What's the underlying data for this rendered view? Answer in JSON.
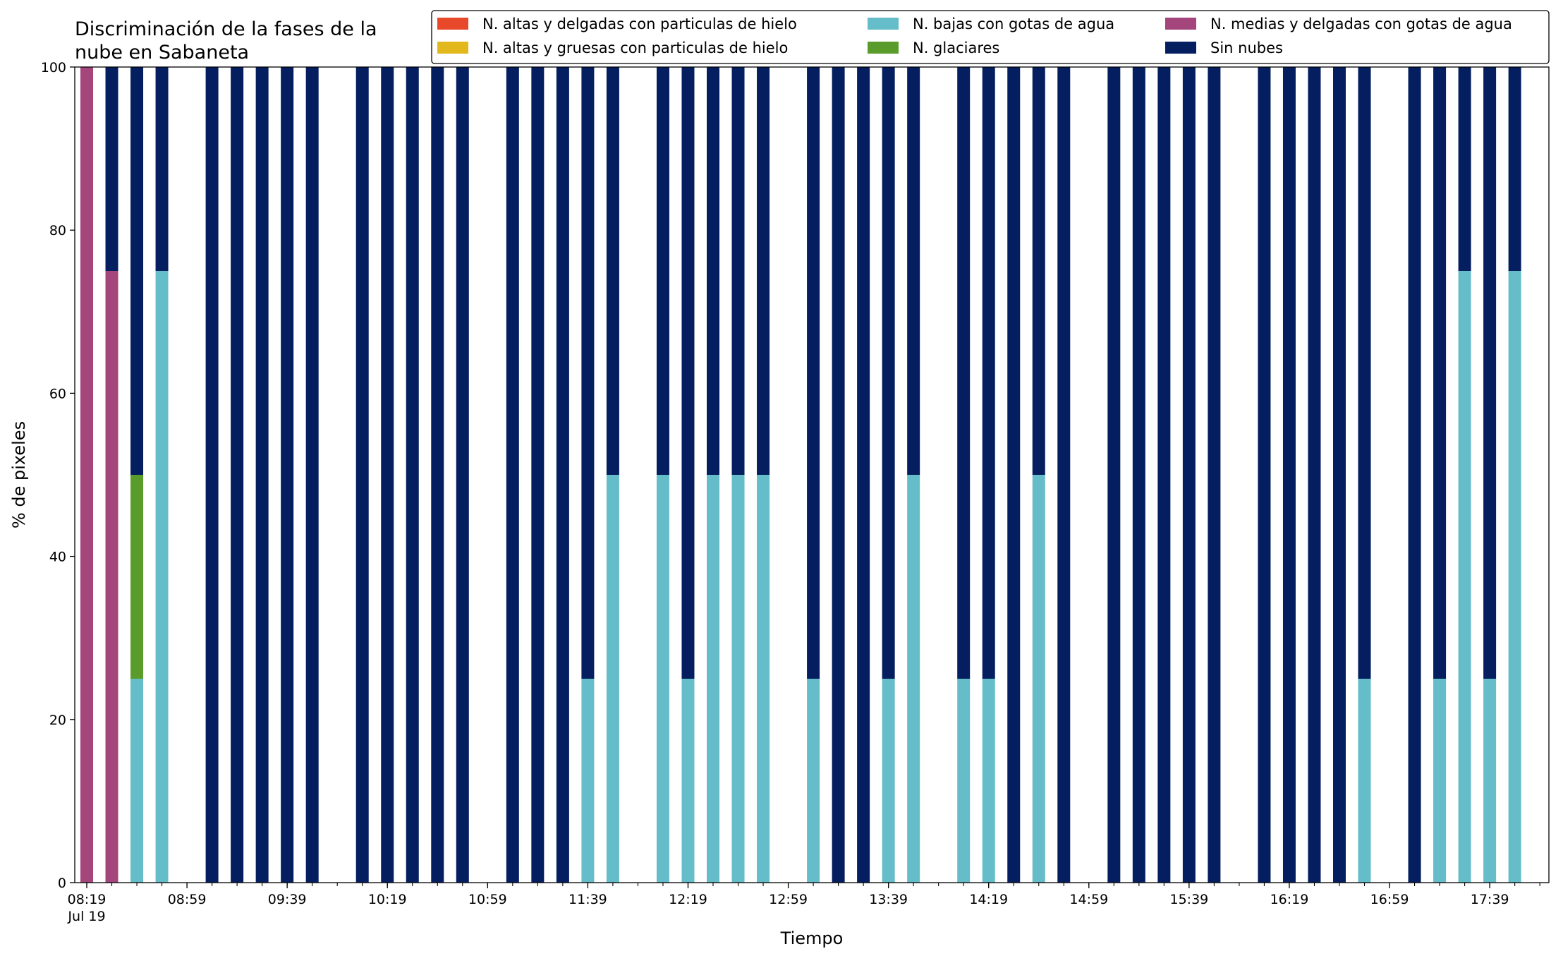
{
  "chart_data": {
    "type": "bar",
    "stacked": true,
    "title": "Discriminación de la fases de la nube en Sabaneta",
    "title_lines": [
      "Discriminación de la fases de la",
      "nube en Sabaneta"
    ],
    "xlabel": "Tiempo",
    "ylabel": "% de pixeles",
    "ylim": [
      0,
      100
    ],
    "yticks": [
      0,
      20,
      40,
      60,
      80,
      100
    ],
    "grid": false,
    "legend_position": "top-right",
    "x_start": "08:19",
    "x_interval_minutes": 10,
    "x_count": 60,
    "xticks": [
      {
        "index": 0,
        "label": "08:19",
        "sublabel": "Jul 19"
      },
      {
        "index": 4,
        "label": "08:59"
      },
      {
        "index": 8,
        "label": "09:39"
      },
      {
        "index": 12,
        "label": "10:19"
      },
      {
        "index": 16,
        "label": "10:59"
      },
      {
        "index": 20,
        "label": "11:39"
      },
      {
        "index": 24,
        "label": "12:19"
      },
      {
        "index": 28,
        "label": "12:59"
      },
      {
        "index": 32,
        "label": "13:39"
      },
      {
        "index": 36,
        "label": "14:19"
      },
      {
        "index": 40,
        "label": "14:59"
      },
      {
        "index": 44,
        "label": "15:39"
      },
      {
        "index": 48,
        "label": "16:19"
      },
      {
        "index": 52,
        "label": "16:59"
      },
      {
        "index": 56,
        "label": "17:39"
      }
    ],
    "series": [
      {
        "name": "N. altas y delgadas con particulas de hielo",
        "color": "#e8492a",
        "points": []
      },
      {
        "name": "N. altas y gruesas con particulas de hielo",
        "color": "#e3b81d",
        "points": []
      },
      {
        "name": "N. bajas con gotas de agua",
        "color": "#66bdca",
        "points": [
          [
            2,
            25
          ],
          [
            3,
            75
          ],
          [
            20,
            25
          ],
          [
            21,
            50
          ],
          [
            23,
            50
          ],
          [
            24,
            25
          ],
          [
            25,
            50
          ],
          [
            26,
            50
          ],
          [
            27,
            50
          ],
          [
            29,
            25
          ],
          [
            32,
            25
          ],
          [
            33,
            50
          ],
          [
            35,
            25
          ],
          [
            36,
            25
          ],
          [
            38,
            50
          ],
          [
            51,
            25
          ],
          [
            54,
            25
          ],
          [
            55,
            75
          ],
          [
            56,
            25
          ],
          [
            57,
            75
          ]
        ]
      },
      {
        "name": "N. glaciares",
        "color": "#5a9c2b",
        "points": [
          [
            2,
            25
          ]
        ]
      },
      {
        "name": "N. medias y delgadas con gotas de agua",
        "color": "#a4457b",
        "points": [
          [
            0,
            100
          ],
          [
            1,
            75
          ]
        ]
      },
      {
        "name": "Sin nubes",
        "color": "#041e5f",
        "points": [
          [
            1,
            25
          ],
          [
            2,
            50
          ],
          [
            3,
            25
          ],
          [
            5,
            100
          ],
          [
            6,
            100
          ],
          [
            7,
            100
          ],
          [
            8,
            100
          ],
          [
            9,
            100
          ],
          [
            11,
            100
          ],
          [
            12,
            100
          ],
          [
            13,
            100
          ],
          [
            14,
            100
          ],
          [
            15,
            100
          ],
          [
            17,
            100
          ],
          [
            18,
            100
          ],
          [
            19,
            100
          ],
          [
            20,
            75
          ],
          [
            21,
            50
          ],
          [
            23,
            50
          ],
          [
            24,
            75
          ],
          [
            25,
            50
          ],
          [
            26,
            50
          ],
          [
            27,
            50
          ],
          [
            29,
            75
          ],
          [
            30,
            100
          ],
          [
            31,
            100
          ],
          [
            32,
            75
          ],
          [
            33,
            50
          ],
          [
            35,
            75
          ],
          [
            36,
            75
          ],
          [
            37,
            100
          ],
          [
            38,
            50
          ],
          [
            39,
            100
          ],
          [
            41,
            100
          ],
          [
            42,
            100
          ],
          [
            43,
            100
          ],
          [
            44,
            100
          ],
          [
            45,
            100
          ],
          [
            47,
            100
          ],
          [
            48,
            100
          ],
          [
            49,
            100
          ],
          [
            50,
            100
          ],
          [
            51,
            75
          ],
          [
            53,
            100
          ],
          [
            54,
            75
          ],
          [
            55,
            25
          ],
          [
            56,
            75
          ],
          [
            57,
            25
          ]
        ]
      }
    ]
  }
}
